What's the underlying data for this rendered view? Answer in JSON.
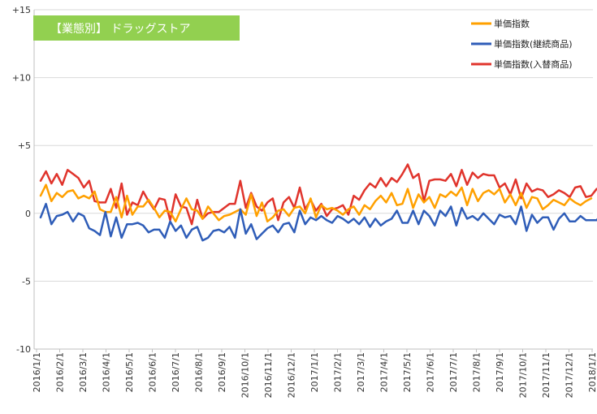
{
  "chart_data": {
    "type": "line",
    "title": "【業態別】 ドラッグストア",
    "title_bg_color": "#92D050",
    "xlabel": "",
    "ylabel": "",
    "ylim": [
      -10,
      15
    ],
    "yticks": [
      {
        "value": 15,
        "label": "+15"
      },
      {
        "value": 10,
        "label": "+10"
      },
      {
        "value": 5,
        "label": "+5"
      },
      {
        "value": 0,
        "label": "0"
      },
      {
        "value": -5,
        "label": "-5"
      },
      {
        "value": -10,
        "label": "-10"
      }
    ],
    "grid": "horizontal",
    "legend_position": "top-right",
    "x_tick_labels": [
      "2016/1/1",
      "2016/2/1",
      "2016/3/1",
      "2016/4/1",
      "2016/5/1",
      "2016/6/1",
      "2016/7/1",
      "2016/8/1",
      "2016/9/1",
      "2016/10/1",
      "2016/11/1",
      "2016/12/1",
      "2017/1/1",
      "2017/2/1",
      "2017/3/1",
      "2017/4/1",
      "2017/5/1",
      "2017/6/1",
      "2017/7/1",
      "2017/8/1",
      "2017/9/1",
      "2017/10/1",
      "2017/11/1",
      "2017/12/1",
      "2018/1/1"
    ],
    "series": [
      {
        "name": "単価指数",
        "color": "#FFA000",
        "values": [
          1.3,
          2.1,
          0.9,
          1.5,
          1.2,
          1.6,
          1.7,
          1.1,
          1.3,
          1.1,
          1.6,
          0.3,
          0.1,
          0.1,
          1.2,
          -0.3,
          1.3,
          -0.1,
          0.5,
          0.5,
          1.0,
          0.4,
          -0.3,
          0.2,
          0.1,
          -0.6,
          0.3,
          1.1,
          0.3,
          0.2,
          -0.4,
          0.5,
          0.0,
          -0.5,
          -0.2,
          -0.1,
          0.1,
          0.3,
          -0.1,
          1.4,
          -0.2,
          0.8,
          -0.6,
          -0.3,
          0.2,
          0.3,
          -0.2,
          0.4,
          0.5,
          0.0,
          1.1,
          -0.3,
          0.6,
          0.3,
          0.4,
          0.2,
          -0.1,
          0.3,
          0.5,
          -0.1,
          0.6,
          0.3,
          0.9,
          1.3,
          0.8,
          1.5,
          0.6,
          0.7,
          1.8,
          0.4,
          1.4,
          0.8,
          1.2,
          0.4,
          1.4,
          1.2,
          1.6,
          1.3,
          1.9,
          0.6,
          1.8,
          0.9,
          1.5,
          1.7,
          1.4,
          1.8,
          0.8,
          1.4,
          0.6,
          1.5,
          0.4,
          1.2,
          1.1,
          0.3,
          0.6,
          1.0,
          0.8,
          0.6,
          1.1,
          0.8,
          0.6,
          0.9,
          1.1
        ]
      },
      {
        "name": "単価指数(継続商品)",
        "color": "#2F5DB8",
        "values": [
          -0.3,
          0.7,
          -0.8,
          -0.2,
          -0.1,
          0.1,
          -0.6,
          0.0,
          -0.2,
          -1.1,
          -1.3,
          -1.6,
          0.1,
          -1.7,
          -0.3,
          -1.8,
          -0.8,
          -0.8,
          -0.7,
          -0.9,
          -1.4,
          -1.2,
          -1.2,
          -1.8,
          -0.6,
          -1.3,
          -0.9,
          -1.8,
          -1.2,
          -1.0,
          -2.0,
          -1.8,
          -1.3,
          -1.2,
          -1.4,
          -1.0,
          -1.8,
          0.3,
          -1.5,
          -0.8,
          -1.9,
          -1.5,
          -1.1,
          -0.9,
          -1.4,
          -0.8,
          -0.7,
          -1.4,
          0.2,
          -0.8,
          -0.3,
          -0.5,
          -0.2,
          -0.5,
          -0.7,
          -0.2,
          -0.4,
          -0.7,
          -0.4,
          -0.8,
          -0.3,
          -1.0,
          -0.4,
          -0.9,
          -0.6,
          -0.4,
          0.2,
          -0.7,
          -0.7,
          0.2,
          -0.8,
          0.2,
          -0.2,
          -0.9,
          0.2,
          -0.2,
          0.5,
          -0.9,
          0.4,
          -0.4,
          -0.2,
          -0.5,
          0.0,
          -0.4,
          -0.8,
          -0.1,
          -0.3,
          -0.2,
          -0.8,
          0.5,
          -1.3,
          -0.1,
          -0.7,
          -0.3,
          -0.3,
          -1.2,
          -0.4,
          0.0,
          -0.6,
          -0.6,
          -0.2,
          -0.5,
          -0.5,
          -0.5,
          0.0
        ]
      },
      {
        "name": "単価指数(入替商品)",
        "color": "#E0342C",
        "values": [
          2.4,
          3.1,
          2.2,
          2.9,
          2.1,
          3.2,
          2.9,
          2.6,
          1.9,
          2.4,
          0.9,
          0.8,
          0.8,
          1.8,
          0.4,
          2.2,
          -0.1,
          0.8,
          0.6,
          1.6,
          0.9,
          0.3,
          1.1,
          1.0,
          -0.5,
          1.4,
          0.5,
          0.4,
          -0.8,
          1.0,
          -0.4,
          0.0,
          0.1,
          0.1,
          0.4,
          0.7,
          0.7,
          2.4,
          0.4,
          1.5,
          0.5,
          0.2,
          0.8,
          1.1,
          -0.5,
          0.8,
          1.2,
          0.4,
          1.9,
          0.3,
          1.0,
          0.2,
          0.7,
          -0.2,
          0.3,
          0.4,
          0.6,
          -0.1,
          1.3,
          1.0,
          1.7,
          2.2,
          1.9,
          2.6,
          2.0,
          2.6,
          2.3,
          2.9,
          3.6,
          2.6,
          2.9,
          0.9,
          2.4,
          2.5,
          2.5,
          2.4,
          2.9,
          2.0,
          3.2,
          2.1,
          3.0,
          2.6,
          2.9,
          2.8,
          2.8,
          1.9,
          2.2,
          1.4,
          2.5,
          1.1,
          2.2,
          1.6,
          1.8,
          1.7,
          1.2,
          1.4,
          1.7,
          1.5,
          1.2,
          1.9,
          2.0,
          1.2,
          1.3,
          1.8
        ]
      }
    ]
  }
}
